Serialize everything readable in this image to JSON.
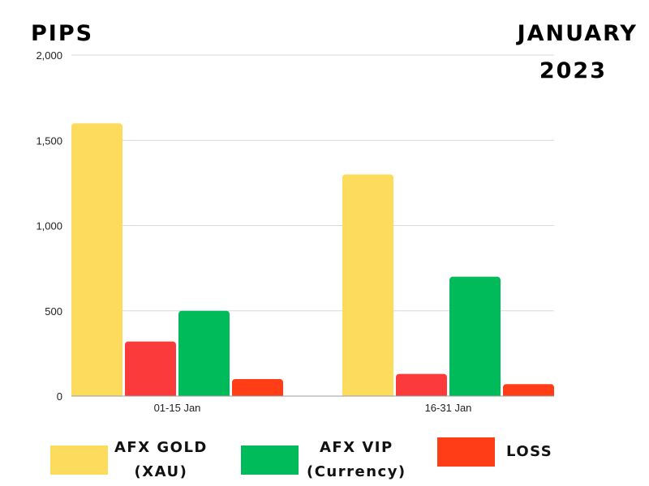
{
  "chart_data": {
    "type": "bar",
    "title_line1": "JANUARY",
    "title_line2": "2023",
    "ylabel": "PIPS",
    "xlabel": "",
    "categories": [
      "01-15 Jan",
      "16-31 Jan"
    ],
    "series": [
      {
        "name": "AFX GOLD",
        "name_line2": "(XAU)",
        "color": "#FDDB5C",
        "values": [
          1600,
          1300
        ]
      },
      {
        "name": "LOSS",
        "name_line2": "",
        "color": "#FB3B3B",
        "values": [
          320,
          130
        ]
      },
      {
        "name": "AFX VIP",
        "name_line2": "(Currency)",
        "color": "#00BB59",
        "values": [
          500,
          700
        ]
      },
      {
        "name": "LOSS",
        "name_line2": "",
        "color": "#FF3D16",
        "values": [
          100,
          70
        ]
      }
    ],
    "ylim": [
      0,
      2000
    ],
    "yticks": [
      0,
      500,
      1000,
      1500,
      2000
    ],
    "ytick_labels": [
      "0",
      "500",
      "1,000",
      "1,500",
      "2,000"
    ],
    "grid": true
  },
  "legend": [
    {
      "label1": "AFX GOLD",
      "label2": "(XAU)",
      "color": "#FDDB5C"
    },
    {
      "label1": "AFX VIP",
      "label2": "(Currency)",
      "color": "#00BB59"
    },
    {
      "label1": "LOSS",
      "label2": "",
      "color": "#FF3D16"
    }
  ]
}
